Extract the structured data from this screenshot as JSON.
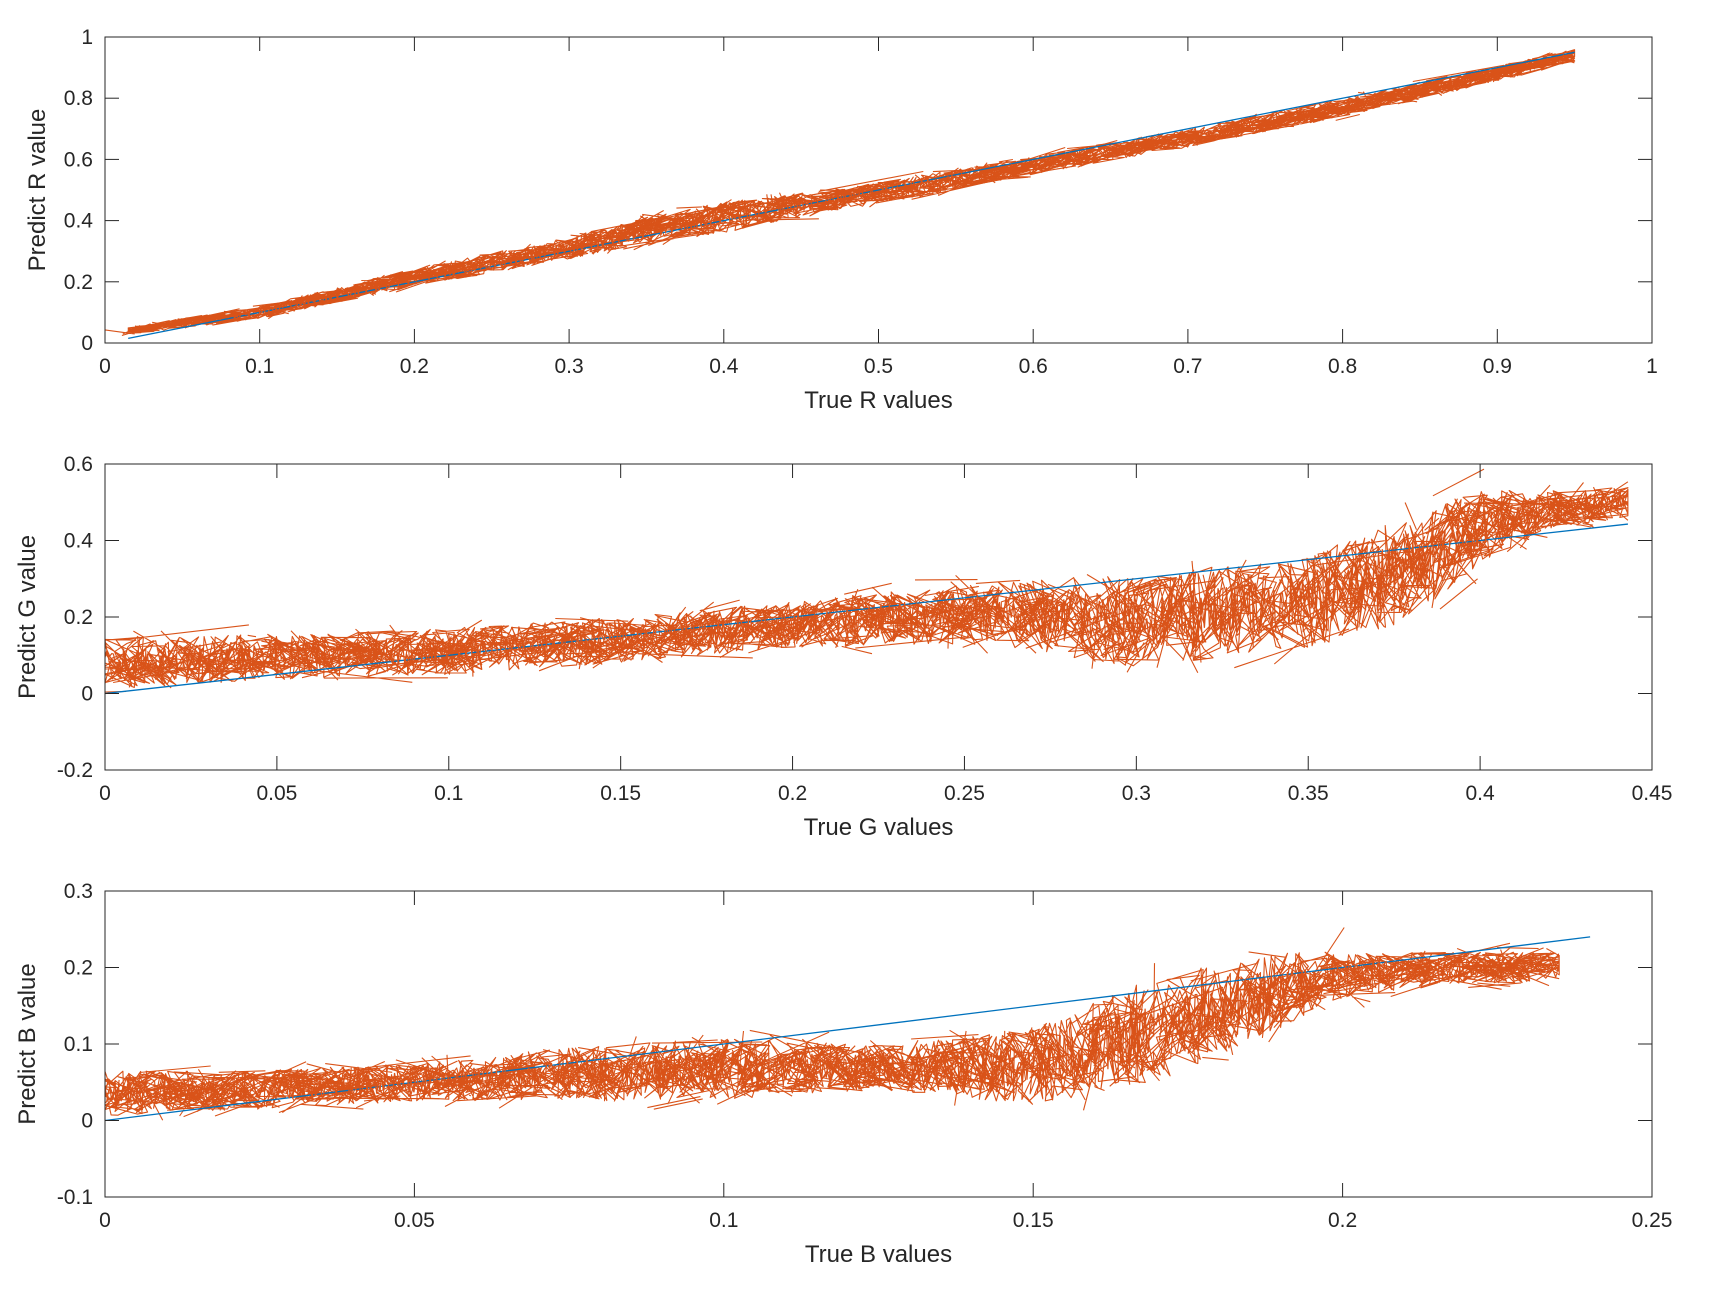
{
  "colors": {
    "fit_line": "#0072BD",
    "predictions": "#D95319",
    "axes": "#262626"
  },
  "chart_data": [
    {
      "type": "line",
      "title": "",
      "xlabel": "True R values",
      "ylabel": "Predict R value",
      "xlim": [
        0,
        1
      ],
      "ylim": [
        0,
        1
      ],
      "xticks": [
        "0",
        "0.1",
        "0.2",
        "0.3",
        "0.4",
        "0.5",
        "0.6",
        "0.7",
        "0.8",
        "0.9",
        "1"
      ],
      "yticks": [
        "0",
        "0.2",
        "0.4",
        "0.6",
        "0.8",
        "1"
      ],
      "series": [
        {
          "name": "ideal",
          "x": [
            0.015,
            0.95
          ],
          "y": [
            0.015,
            0.95
          ]
        },
        {
          "name": "predicted",
          "x": [
            0.015,
            0.1,
            0.2,
            0.3,
            0.35,
            0.4,
            0.45,
            0.5,
            0.6,
            0.7,
            0.8,
            0.9,
            0.95
          ],
          "y": [
            0.04,
            0.1,
            0.215,
            0.31,
            0.37,
            0.41,
            0.45,
            0.49,
            0.58,
            0.67,
            0.77,
            0.88,
            0.94
          ],
          "spread": [
            0.012,
            0.02,
            0.03,
            0.035,
            0.045,
            0.05,
            0.04,
            0.035,
            0.03,
            0.03,
            0.03,
            0.025,
            0.02
          ]
        }
      ]
    },
    {
      "type": "line",
      "title": "",
      "xlabel": "True G values",
      "ylabel": "Predict G value",
      "xlim": [
        0,
        0.45
      ],
      "ylim": [
        -0.2,
        0.6
      ],
      "xticks": [
        "0",
        "0.05",
        "0.1",
        "0.15",
        "0.2",
        "0.25",
        "0.3",
        "0.35",
        "0.4",
        "0.45"
      ],
      "yticks": [
        "-0.2",
        "0",
        "0.2",
        "0.4",
        "0.6"
      ],
      "series": [
        {
          "name": "ideal",
          "x": [
            0,
            0.443
          ],
          "y": [
            0,
            0.443
          ]
        },
        {
          "name": "predicted",
          "x": [
            0,
            0.05,
            0.1,
            0.15,
            0.2,
            0.25,
            0.3,
            0.35,
            0.38,
            0.4,
            0.42,
            0.443
          ],
          "y": [
            0.08,
            0.095,
            0.11,
            0.14,
            0.18,
            0.21,
            0.19,
            0.24,
            0.33,
            0.44,
            0.48,
            0.5
          ],
          "spread": [
            0.07,
            0.06,
            0.06,
            0.06,
            0.06,
            0.08,
            0.12,
            0.12,
            0.14,
            0.1,
            0.05,
            0.04
          ]
        }
      ]
    },
    {
      "type": "line",
      "title": "",
      "xlabel": "True B values",
      "ylabel": "Predict B value",
      "xlim": [
        0,
        0.25
      ],
      "ylim": [
        -0.1,
        0.3
      ],
      "xticks": [
        "0",
        "0.05",
        "0.1",
        "0.15",
        "0.2",
        "0.25"
      ],
      "yticks": [
        "-0.1",
        "0",
        "0.1",
        "0.2",
        "0.3"
      ],
      "series": [
        {
          "name": "ideal",
          "x": [
            0,
            0.24
          ],
          "y": [
            0,
            0.24
          ]
        },
        {
          "name": "predicted",
          "x": [
            0,
            0.025,
            0.05,
            0.075,
            0.1,
            0.125,
            0.15,
            0.17,
            0.19,
            0.2,
            0.22,
            0.235
          ],
          "y": [
            0.035,
            0.04,
            0.05,
            0.06,
            0.068,
            0.07,
            0.07,
            0.12,
            0.17,
            0.19,
            0.2,
            0.2
          ],
          "spread": [
            0.03,
            0.025,
            0.025,
            0.035,
            0.04,
            0.03,
            0.05,
            0.07,
            0.05,
            0.03,
            0.02,
            0.02
          ]
        }
      ]
    }
  ]
}
